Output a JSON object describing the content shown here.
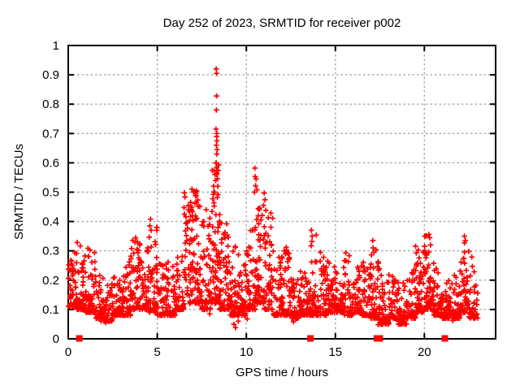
{
  "chart_data": {
    "type": "scatter",
    "title": "Day 252 of 2023, SRMTID for receiver p002",
    "xlabel": "GPS time / hours",
    "ylabel": "SRMTID / TECUs",
    "xlim": [
      0,
      24
    ],
    "ylim": [
      0,
      1
    ],
    "xticks": [
      0,
      5,
      10,
      15,
      20
    ],
    "yticks": [
      0,
      0.1,
      0.2,
      0.3,
      0.4,
      0.5,
      0.6,
      0.7,
      0.8,
      0.9,
      1
    ],
    "grid": true,
    "legend_position": "none",
    "style": {
      "marker_shape": "plus",
      "marker_color": "#ff0000",
      "grid_color": "#a8a8a8",
      "border_color": "#000000",
      "background": "#ffffff"
    },
    "points": {
      "description": "dense band of SRMTID values; bins are [x_start, y_min, y_max, count, cluster_power] over bin_width hours, estimated from plot",
      "bin_width": 0.5,
      "bins": [
        [
          0.0,
          0.11,
          0.3,
          55
        ],
        [
          0.5,
          0.1,
          0.33,
          55
        ],
        [
          1.0,
          0.09,
          0.31,
          55
        ],
        [
          1.5,
          0.07,
          0.22,
          48
        ],
        [
          2.0,
          0.06,
          0.19,
          48
        ],
        [
          2.5,
          0.08,
          0.21,
          48
        ],
        [
          3.0,
          0.08,
          0.27,
          48
        ],
        [
          3.5,
          0.1,
          0.35,
          52,
          2.2
        ],
        [
          4.0,
          0.1,
          0.33,
          52,
          2.2
        ],
        [
          4.5,
          0.09,
          0.4,
          48
        ],
        [
          5.0,
          0.08,
          0.26,
          48
        ],
        [
          5.5,
          0.08,
          0.28,
          48
        ],
        [
          6.0,
          0.1,
          0.3,
          48
        ],
        [
          6.5,
          0.12,
          0.5,
          58,
          2.0
        ],
        [
          7.0,
          0.12,
          0.51,
          58,
          2.0
        ],
        [
          7.5,
          0.1,
          0.45,
          55,
          2.2
        ],
        [
          8.0,
          0.12,
          0.6,
          78,
          1.5
        ],
        [
          8.5,
          0.1,
          0.42,
          55,
          2.2
        ],
        [
          9.0,
          0.08,
          0.32,
          50
        ],
        [
          9.5,
          0.08,
          0.29,
          50
        ],
        [
          10.0,
          0.1,
          0.38,
          52
        ],
        [
          10.5,
          0.12,
          0.5,
          55,
          2.0
        ],
        [
          11.0,
          0.1,
          0.46,
          52,
          2.2
        ],
        [
          11.5,
          0.08,
          0.3,
          50
        ],
        [
          12.0,
          0.08,
          0.33,
          50
        ],
        [
          12.5,
          0.07,
          0.21,
          46
        ],
        [
          13.0,
          0.08,
          0.24,
          46
        ],
        [
          13.5,
          0.08,
          0.37,
          50,
          2.4
        ],
        [
          14.0,
          0.08,
          0.3,
          48
        ],
        [
          14.5,
          0.09,
          0.27,
          46
        ],
        [
          15.0,
          0.09,
          0.25,
          46
        ],
        [
          15.5,
          0.08,
          0.3,
          46
        ],
        [
          16.0,
          0.09,
          0.25,
          46
        ],
        [
          16.5,
          0.08,
          0.27,
          46
        ],
        [
          17.0,
          0.07,
          0.33,
          48
        ],
        [
          17.5,
          0.05,
          0.22,
          46
        ],
        [
          18.0,
          0.07,
          0.22,
          46
        ],
        [
          18.5,
          0.05,
          0.2,
          46
        ],
        [
          19.0,
          0.07,
          0.24,
          46
        ],
        [
          19.5,
          0.09,
          0.32,
          50,
          2.2
        ],
        [
          20.0,
          0.1,
          0.36,
          55,
          2.0
        ],
        [
          20.5,
          0.08,
          0.26,
          46
        ],
        [
          21.0,
          0.07,
          0.2,
          46
        ],
        [
          21.5,
          0.07,
          0.22,
          46
        ],
        [
          22.0,
          0.09,
          0.34,
          50,
          2.0
        ],
        [
          22.5,
          0.07,
          0.3,
          38
        ]
      ],
      "peaks": [
        [
          8.31,
          0.92
        ],
        [
          8.33,
          0.905
        ],
        [
          8.33,
          0.828
        ],
        [
          8.32,
          0.78
        ],
        [
          8.3,
          0.715
        ],
        [
          8.34,
          0.7
        ],
        [
          8.33,
          0.69
        ],
        [
          8.35,
          0.675
        ],
        [
          8.32,
          0.66
        ],
        [
          8.36,
          0.645
        ],
        [
          8.34,
          0.63
        ],
        [
          8.3,
          0.6
        ],
        [
          8.34,
          0.565
        ],
        [
          8.28,
          0.54
        ],
        [
          8.4,
          0.52
        ],
        [
          10.48,
          0.582
        ],
        [
          10.5,
          0.553
        ],
        [
          10.55,
          0.545
        ],
        [
          10.52,
          0.522
        ],
        [
          10.6,
          0.508
        ],
        [
          10.46,
          0.5
        ],
        [
          11.0,
          0.497
        ],
        [
          11.05,
          0.474
        ],
        [
          10.97,
          0.455
        ],
        [
          11.1,
          0.438
        ],
        [
          6.95,
          0.51
        ],
        [
          7.05,
          0.5
        ],
        [
          7.15,
          0.487
        ],
        [
          6.87,
          0.465
        ],
        [
          7.3,
          0.452
        ],
        [
          6.75,
          0.44
        ],
        [
          4.62,
          0.408
        ],
        [
          4.58,
          0.385
        ],
        [
          4.65,
          0.37
        ],
        [
          13.65,
          0.37
        ],
        [
          13.7,
          0.35
        ],
        [
          17.1,
          0.335
        ],
        [
          17.12,
          0.31
        ],
        [
          20.25,
          0.356
        ],
        [
          20.3,
          0.345
        ],
        [
          22.25,
          0.35
        ],
        [
          22.3,
          0.335
        ],
        [
          9.3,
          0.05
        ],
        [
          9.4,
          0.038
        ],
        [
          9.55,
          0.06
        ],
        [
          10.05,
          0.068
        ],
        [
          17.4,
          0.048
        ],
        [
          17.45,
          0.064
        ],
        [
          2.1,
          0.055
        ],
        [
          1.85,
          0.06
        ],
        [
          12.65,
          0.058
        ],
        [
          18.8,
          0.052
        ],
        [
          21.6,
          0.062
        ],
        [
          7.95,
          0.085
        ]
      ],
      "axis_marker_x": [
        0.62,
        13.6,
        17.33,
        17.5,
        21.15
      ],
      "axis_marker_shape": "filled-square",
      "axis_marker_y": 0
    }
  }
}
